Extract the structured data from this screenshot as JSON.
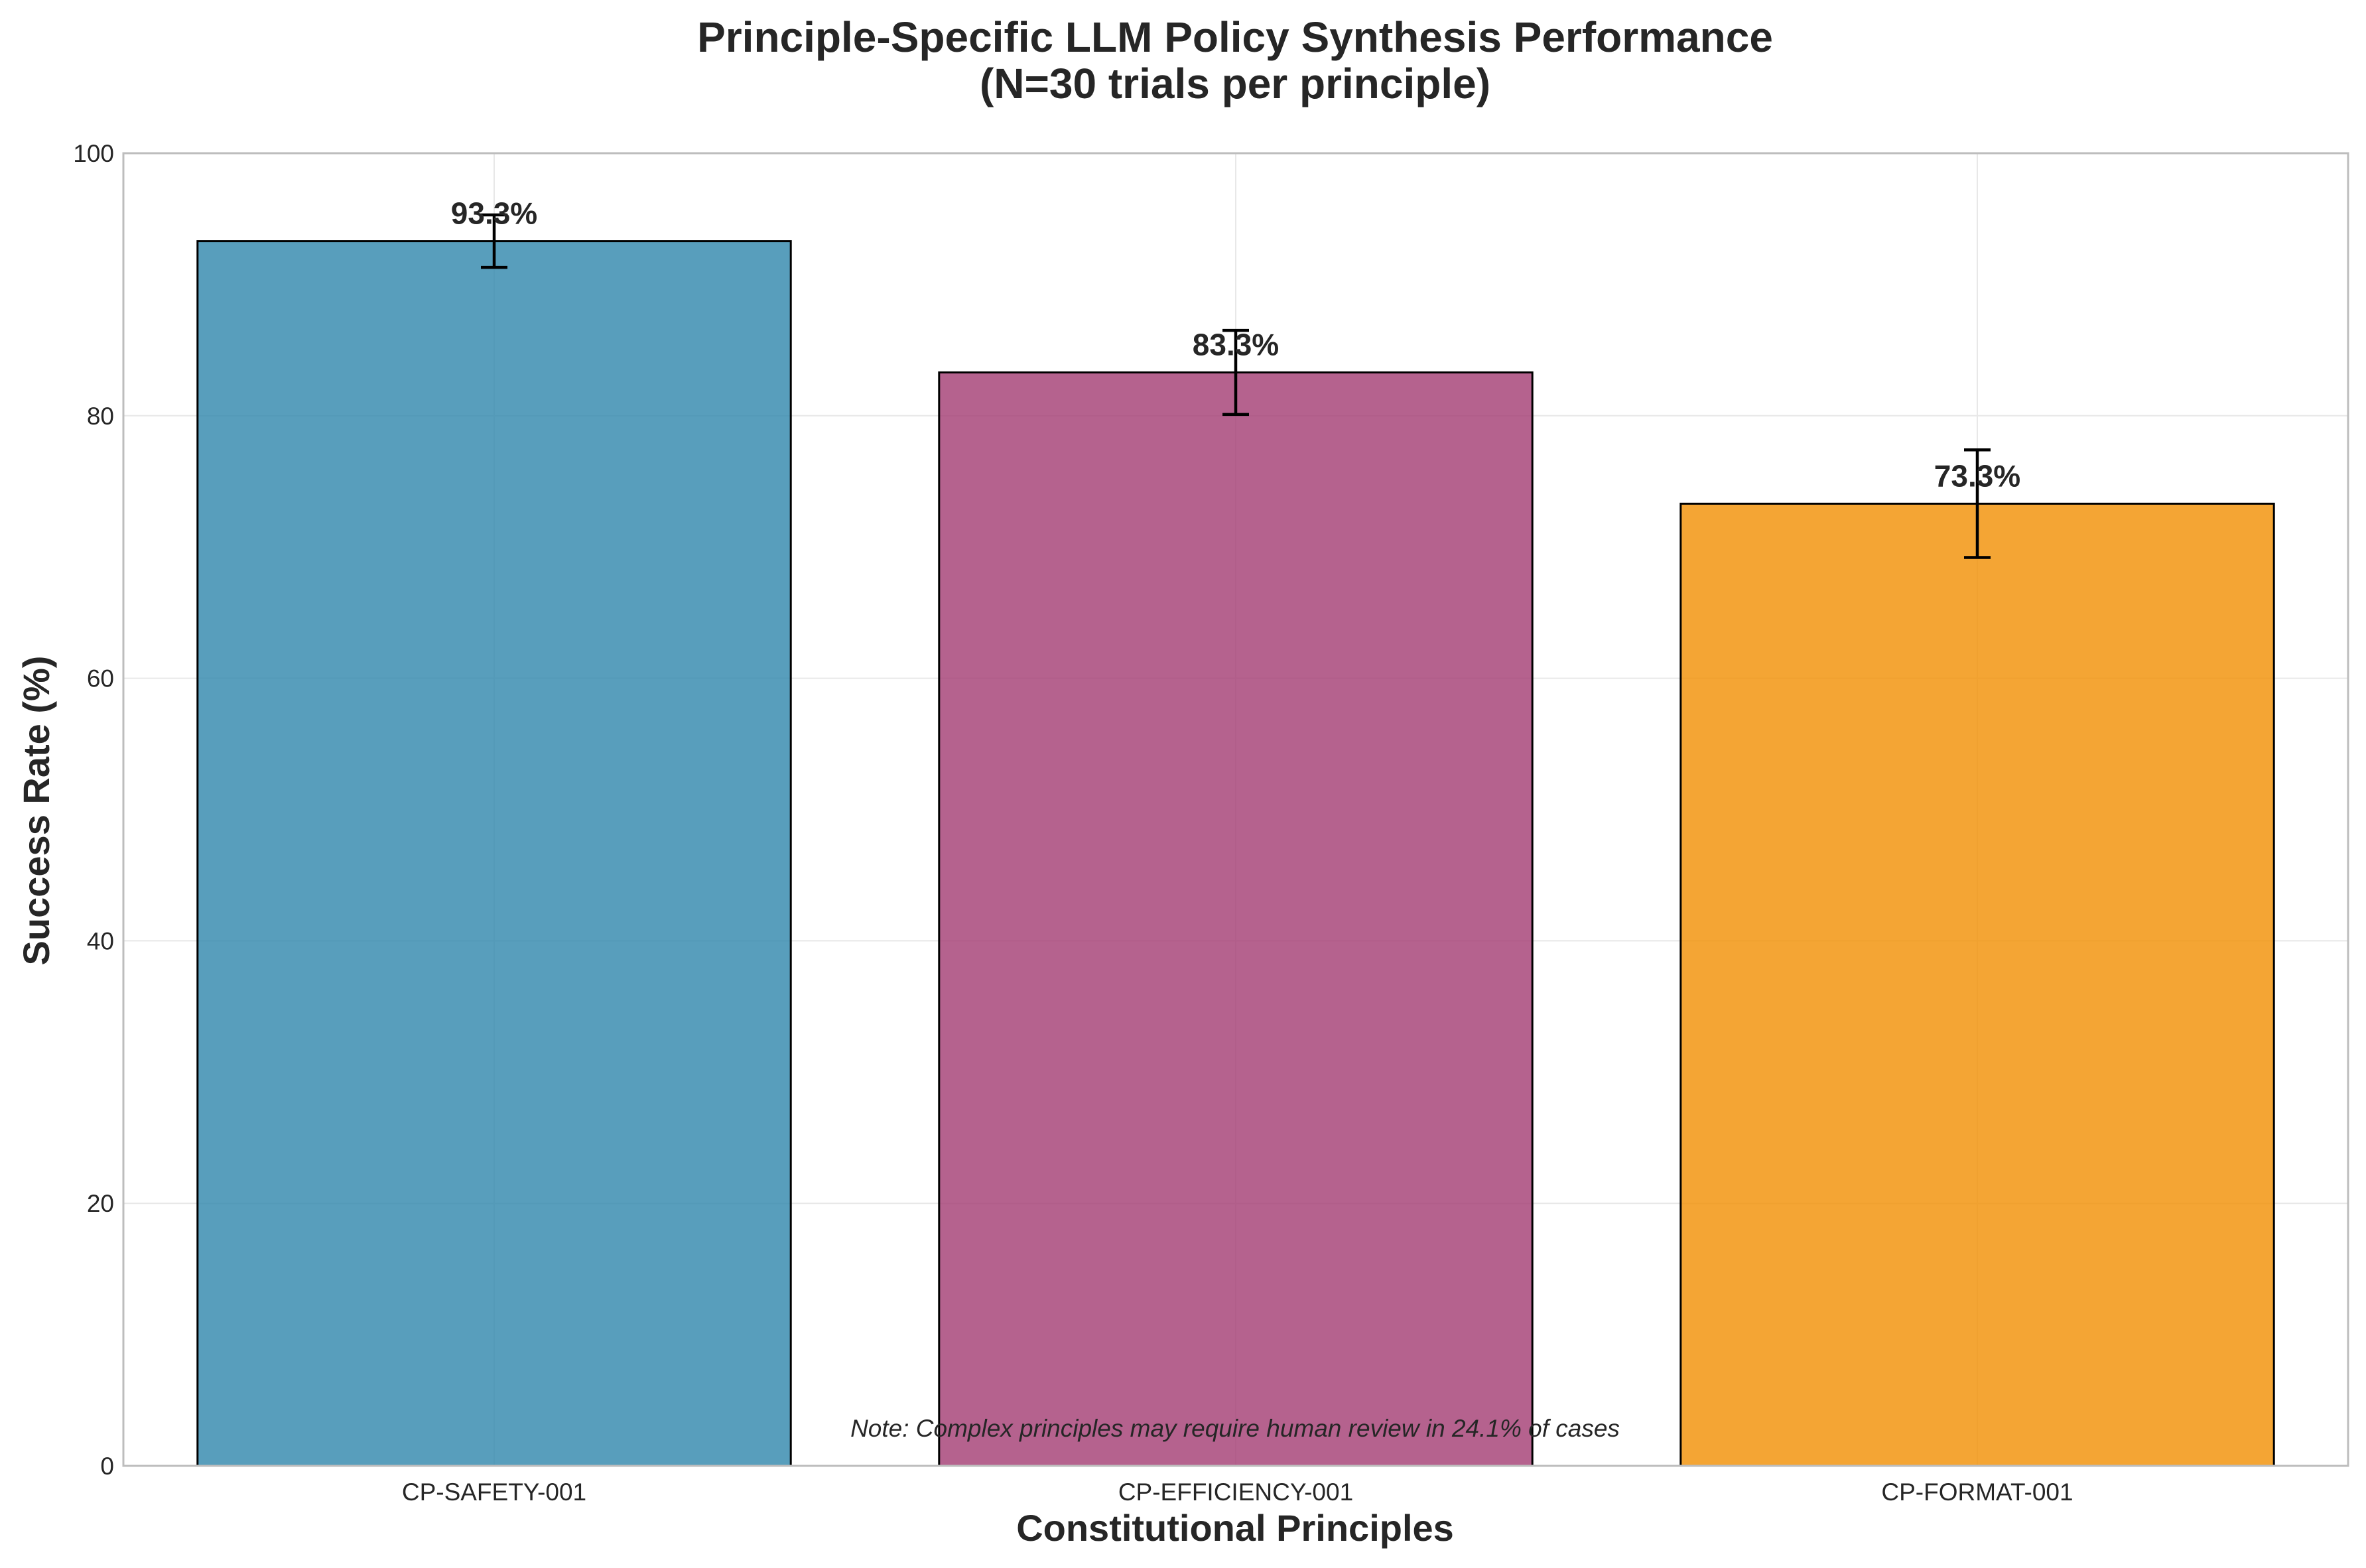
{
  "chart_data": {
    "type": "bar",
    "title_lines": [
      "Principle-Specific LLM Policy Synthesis Performance",
      "(N=30 trials per principle)"
    ],
    "xlabel": "Constitutional Principles",
    "ylabel": "Success Rate (%)",
    "ylim": [
      0,
      100
    ],
    "yticks": [
      0,
      20,
      40,
      60,
      80,
      100
    ],
    "grid": true,
    "categories": [
      "CP-SAFETY-001",
      "CP-EFFICIENCY-001",
      "CP-FORMAT-001"
    ],
    "values": [
      93.3,
      83.3,
      73.3
    ],
    "error": [
      2.0,
      3.2,
      4.1
    ],
    "data_labels": [
      "93.3%",
      "83.3%",
      "73.3%"
    ],
    "colors": [
      "#2E86AB",
      "#A23B72",
      "#F18F01"
    ],
    "bar_edge_color": "#000000",
    "note": "Note: Complex principles may require human review in 24.1% of cases"
  }
}
